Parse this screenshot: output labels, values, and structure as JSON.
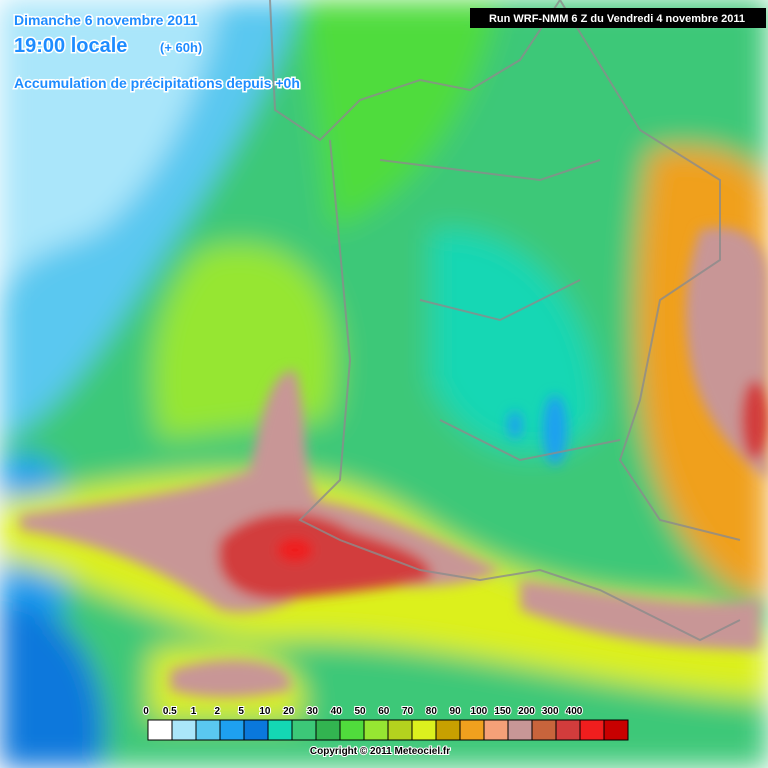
{
  "header": {
    "date": "Dimanche 6 novembre 2011",
    "time": "19:00 locale",
    "offset": "(+ 60h)",
    "subtitle": "Accumulation de précipitations depuis +0h",
    "run": "Run WRF-NMM 6 Z du Vendredi 4 novembre 2011"
  },
  "legend": {
    "labels": [
      0,
      0.5,
      1,
      2,
      5,
      10,
      20,
      30,
      40,
      50,
      60,
      70,
      80,
      90,
      100,
      150,
      200,
      300,
      400
    ],
    "colors": [
      "#ffffff",
      "#aae6fa",
      "#5ac8f0",
      "#1ea0f0",
      "#0a78dc",
      "#14d7b4",
      "#3cc878",
      "#32b450",
      "#50dc3c",
      "#96e632",
      "#b4d21e",
      "#dcf01e",
      "#c8a000",
      "#f0a01e",
      "#f5a078",
      "#c89696",
      "#c8643c",
      "#d23c3c",
      "#f01e1e",
      "#c80000"
    ]
  },
  "footer": {
    "copyright": "Copyright © 2011 Meteociel.fr"
  }
}
